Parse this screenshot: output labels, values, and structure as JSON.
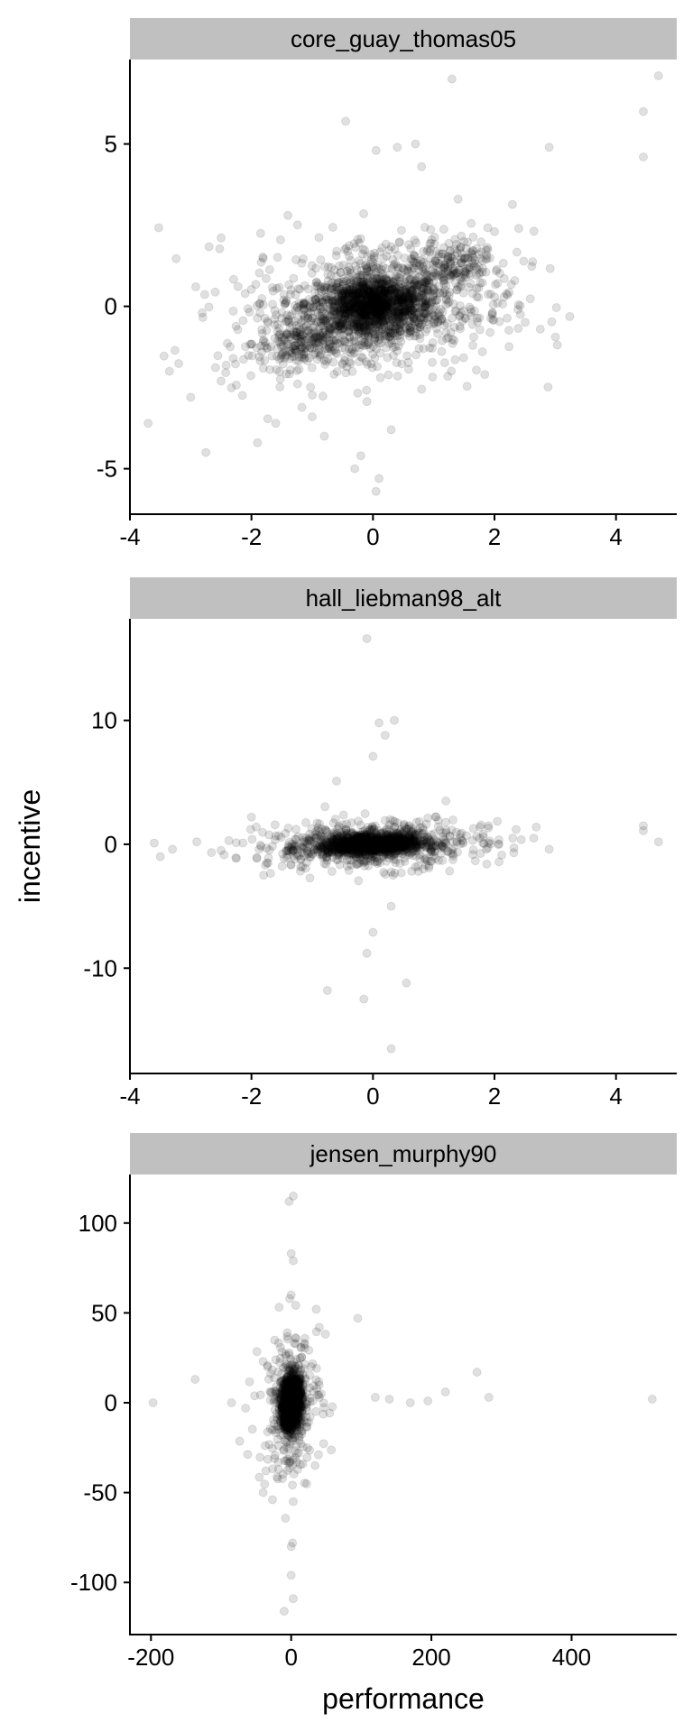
{
  "chart_data": {
    "type": "scatter",
    "facet_layout": "single column, free scales",
    "x_label": "performance",
    "y_label": "incentive",
    "point_style": "black, semi-transparent circles",
    "strip_color": "#c0c0c0",
    "panels": [
      {
        "title": "core_guay_thomas05",
        "xlim": [
          -4.0,
          5.0
        ],
        "ylim": [
          -6.4,
          7.6
        ],
        "x_ticks": [
          -4,
          -2,
          0,
          2,
          4
        ],
        "x_tick_labels": [
          "-4",
          "-2",
          "0",
          "2",
          "4"
        ],
        "y_ticks": [
          -5,
          0,
          5
        ],
        "y_tick_labels": [
          "-5",
          "0",
          "5"
        ],
        "points": [
          {
            "x": -3.7,
            "y": -3.6
          },
          {
            "x": -3.35,
            "y": -2.0
          },
          {
            "x": -3.0,
            "y": -2.8
          },
          {
            "x": -2.75,
            "y": -4.5
          },
          {
            "x": -2.5,
            "y": -2.3
          },
          {
            "x": -2.3,
            "y": -1.6
          },
          {
            "x": -1.9,
            "y": -4.2
          },
          {
            "x": -1.6,
            "y": -3.6
          },
          {
            "x": -1.4,
            "y": 2.8
          },
          {
            "x": -1.0,
            "y": -3.4
          },
          {
            "x": -0.8,
            "y": -4.0
          },
          {
            "x": -0.45,
            "y": 5.7
          },
          {
            "x": -0.3,
            "y": -5.0
          },
          {
            "x": 0.05,
            "y": -5.7
          },
          {
            "x": 0.1,
            "y": -5.3
          },
          {
            "x": 0.05,
            "y": 4.8
          },
          {
            "x": 0.4,
            "y": 4.9
          },
          {
            "x": 0.7,
            "y": 5.0
          },
          {
            "x": 0.8,
            "y": 4.3
          },
          {
            "x": 1.3,
            "y": 7.0
          },
          {
            "x": 1.4,
            "y": 3.3
          },
          {
            "x": 1.8,
            "y": -1.4
          },
          {
            "x": 2.0,
            "y": 2.3
          },
          {
            "x": 2.4,
            "y": 2.4
          },
          {
            "x": 2.9,
            "y": 4.9
          },
          {
            "x": 4.45,
            "y": 6.0
          },
          {
            "x": 4.45,
            "y": 4.6
          },
          {
            "x": 4.7,
            "y": 7.1
          },
          {
            "x": 0.3,
            "y": -3.8
          },
          {
            "x": -0.2,
            "y": -4.6
          }
        ],
        "dense_core": [
          {
            "x": 0.0,
            "y": 0.0,
            "r": 1.0,
            "n": 1400
          },
          {
            "x": 0.0,
            "y": 0.0,
            "r": 2.3,
            "n": 700
          },
          {
            "x": -1.3,
            "y": -1.2,
            "r": 0.7,
            "n": 160
          },
          {
            "x": 1.3,
            "y": 1.3,
            "r": 0.7,
            "n": 160
          }
        ]
      },
      {
        "title": "hall_liebman98_alt",
        "xlim": [
          -4.0,
          5.0
        ],
        "ylim": [
          -18.5,
          18.2
        ],
        "x_ticks": [
          -4,
          -2,
          0,
          2,
          4
        ],
        "x_tick_labels": [
          "-4",
          "-2",
          "0",
          "2",
          "4"
        ],
        "y_ticks": [
          -10,
          0,
          10
        ],
        "y_tick_labels": [
          "-10",
          "0",
          "10"
        ],
        "points": [
          {
            "x": -3.6,
            "y": 0.1
          },
          {
            "x": -3.5,
            "y": -1.0
          },
          {
            "x": -3.3,
            "y": -0.4
          },
          {
            "x": -2.9,
            "y": 0.2
          },
          {
            "x": -2.5,
            "y": -0.5
          },
          {
            "x": -2.0,
            "y": 2.2
          },
          {
            "x": -1.8,
            "y": -2.5
          },
          {
            "x": -0.75,
            "y": -11.8
          },
          {
            "x": -0.6,
            "y": 5.1
          },
          {
            "x": -0.1,
            "y": 16.6
          },
          {
            "x": -0.1,
            "y": -8.8
          },
          {
            "x": -0.15,
            "y": -12.5
          },
          {
            "x": 0.0,
            "y": -7.1
          },
          {
            "x": 0.0,
            "y": 7.1
          },
          {
            "x": 0.1,
            "y": 9.8
          },
          {
            "x": 0.2,
            "y": 8.8
          },
          {
            "x": 0.35,
            "y": 10.0
          },
          {
            "x": 0.3,
            "y": -16.5
          },
          {
            "x": 0.55,
            "y": -11.2
          },
          {
            "x": 0.3,
            "y": -5.0
          },
          {
            "x": 1.2,
            "y": 3.5
          },
          {
            "x": 1.9,
            "y": 1.5
          },
          {
            "x": 2.3,
            "y": 0.5
          },
          {
            "x": 2.9,
            "y": -0.4
          },
          {
            "x": 4.45,
            "y": 1.5
          },
          {
            "x": 4.45,
            "y": 1.1
          },
          {
            "x": 4.7,
            "y": 0.2
          }
        ],
        "dense_core": [
          {
            "x": 0.0,
            "y": 0.0,
            "r": 0.9,
            "n": 1100
          },
          {
            "x": 0.0,
            "y": 0.0,
            "r": 2.0,
            "n": 500
          }
        ]
      },
      {
        "title": "jensen_murphy90",
        "xlim": [
          -230,
          550
        ],
        "ylim": [
          -129,
          127
        ],
        "x_ticks": [
          -200,
          0,
          200,
          400
        ],
        "x_tick_labels": [
          "-200",
          "0",
          "200",
          "400"
        ],
        "y_ticks": [
          -100,
          -50,
          0,
          50,
          100
        ],
        "y_tick_labels": [
          "-100",
          "-50",
          "0",
          "50",
          "100"
        ],
        "points": [
          {
            "x": -197,
            "y": 0
          },
          {
            "x": -137,
            "y": 13
          },
          {
            "x": -85,
            "y": 0
          },
          {
            "x": -65,
            "y": -3
          },
          {
            "x": -40,
            "y": 23
          },
          {
            "x": -40,
            "y": -50
          },
          {
            "x": -10,
            "y": -116
          },
          {
            "x": -3,
            "y": 112
          },
          {
            "x": 3,
            "y": 115
          },
          {
            "x": 0,
            "y": 83
          },
          {
            "x": 3,
            "y": 79
          },
          {
            "x": 0,
            "y": 60
          },
          {
            "x": 0,
            "y": -80
          },
          {
            "x": 2,
            "y": -78
          },
          {
            "x": 0,
            "y": -96
          },
          {
            "x": 3,
            "y": -109
          },
          {
            "x": 3,
            "y": -55
          },
          {
            "x": 40,
            "y": 42
          },
          {
            "x": 95,
            "y": 47
          },
          {
            "x": 120,
            "y": 3
          },
          {
            "x": 140,
            "y": 2
          },
          {
            "x": 170,
            "y": 0
          },
          {
            "x": 195,
            "y": 1
          },
          {
            "x": 220,
            "y": 6
          },
          {
            "x": 265,
            "y": 17
          },
          {
            "x": 282,
            "y": 3
          },
          {
            "x": 515,
            "y": 2
          }
        ],
        "dense_core": [
          {
            "x": 0,
            "y": 0,
            "r": 15,
            "n": 1200
          },
          {
            "x": 0,
            "y": 0,
            "r": 45,
            "n": 260
          }
        ]
      }
    ]
  }
}
